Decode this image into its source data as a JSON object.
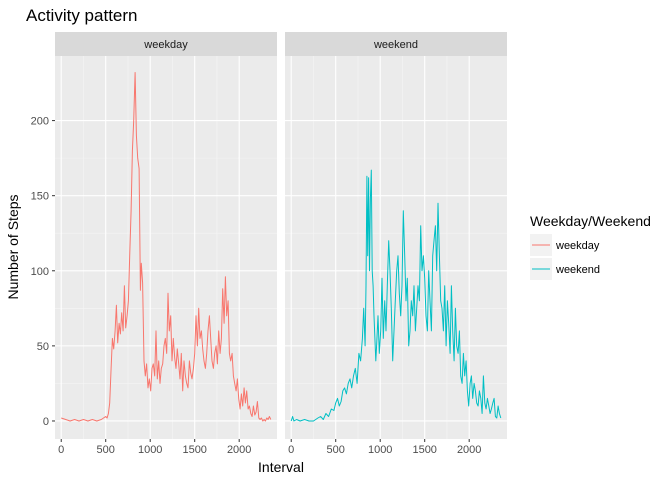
{
  "chart_data": {
    "type": "line",
    "title": "Activity pattern",
    "xlabel": "Interval",
    "ylabel": "Number of Steps",
    "facets": [
      "weekday",
      "weekend"
    ],
    "xlim": [
      -70,
      2425
    ],
    "ylim": [
      -12,
      243
    ],
    "x_ticks": [
      0,
      500,
      1000,
      1500,
      2000
    ],
    "y_ticks": [
      0,
      50,
      100,
      150,
      200
    ],
    "grid": true,
    "legend": {
      "title": "Weekday/Weekend",
      "position": "right",
      "entries": [
        "weekday",
        "weekend"
      ]
    },
    "colors": {
      "weekday": "#F8766D",
      "weekend": "#00BFC4",
      "panel": "#EBEBEB",
      "strip": "#D9D9D9"
    },
    "series": [
      {
        "name": "weekday",
        "facet": "weekday",
        "points": [
          [
            0,
            2
          ],
          [
            50,
            1
          ],
          [
            100,
            0
          ],
          [
            150,
            1
          ],
          [
            200,
            0
          ],
          [
            250,
            1
          ],
          [
            300,
            0
          ],
          [
            350,
            1
          ],
          [
            400,
            0
          ],
          [
            450,
            1
          ],
          [
            500,
            3
          ],
          [
            515,
            2
          ],
          [
            530,
            5
          ],
          [
            545,
            12
          ],
          [
            560,
            35
          ],
          [
            575,
            55
          ],
          [
            590,
            48
          ],
          [
            605,
            60
          ],
          [
            620,
            77
          ],
          [
            635,
            52
          ],
          [
            650,
            65
          ],
          [
            665,
            58
          ],
          [
            680,
            72
          ],
          [
            695,
            60
          ],
          [
            710,
            90
          ],
          [
            725,
            62
          ],
          [
            740,
            70
          ],
          [
            755,
            80
          ],
          [
            770,
            110
          ],
          [
            785,
            140
          ],
          [
            800,
            180
          ],
          [
            815,
            200
          ],
          [
            830,
            232
          ],
          [
            845,
            190
          ],
          [
            860,
            175
          ],
          [
            875,
            168
          ],
          [
            890,
            87
          ],
          [
            900,
            105
          ],
          [
            915,
            92
          ],
          [
            930,
            40
          ],
          [
            945,
            30
          ],
          [
            960,
            38
          ],
          [
            975,
            22
          ],
          [
            990,
            28
          ],
          [
            1005,
            20
          ],
          [
            1020,
            35
          ],
          [
            1035,
            38
          ],
          [
            1050,
            30
          ],
          [
            1065,
            60
          ],
          [
            1080,
            28
          ],
          [
            1095,
            40
          ],
          [
            1110,
            25
          ],
          [
            1125,
            35
          ],
          [
            1140,
            38
          ],
          [
            1155,
            50
          ],
          [
            1170,
            55
          ],
          [
            1185,
            45
          ],
          [
            1200,
            85
          ],
          [
            1215,
            60
          ],
          [
            1230,
            70
          ],
          [
            1245,
            40
          ],
          [
            1260,
            55
          ],
          [
            1275,
            42
          ],
          [
            1290,
            35
          ],
          [
            1305,
            48
          ],
          [
            1320,
            38
          ],
          [
            1335,
            28
          ],
          [
            1350,
            45
          ],
          [
            1365,
            20
          ],
          [
            1380,
            40
          ],
          [
            1395,
            30
          ],
          [
            1410,
            25
          ],
          [
            1425,
            22
          ],
          [
            1440,
            40
          ],
          [
            1455,
            32
          ],
          [
            1470,
            28
          ],
          [
            1485,
            35
          ],
          [
            1500,
            45
          ],
          [
            1515,
            70
          ],
          [
            1530,
            50
          ],
          [
            1545,
            75
          ],
          [
            1560,
            55
          ],
          [
            1575,
            60
          ],
          [
            1590,
            48
          ],
          [
            1605,
            40
          ],
          [
            1620,
            35
          ],
          [
            1635,
            45
          ],
          [
            1650,
            60
          ],
          [
            1665,
            70
          ],
          [
            1680,
            55
          ],
          [
            1695,
            40
          ],
          [
            1710,
            35
          ],
          [
            1725,
            45
          ],
          [
            1740,
            50
          ],
          [
            1755,
            38
          ],
          [
            1770,
            60
          ],
          [
            1785,
            45
          ],
          [
            1800,
            55
          ],
          [
            1815,
            88
          ],
          [
            1830,
            65
          ],
          [
            1845,
            96
          ],
          [
            1860,
            70
          ],
          [
            1875,
            80
          ],
          [
            1890,
            45
          ],
          [
            1905,
            40
          ],
          [
            1920,
            45
          ],
          [
            1935,
            30
          ],
          [
            1950,
            25
          ],
          [
            1965,
            20
          ],
          [
            1980,
            28
          ],
          [
            1995,
            15
          ],
          [
            2010,
            8
          ],
          [
            2025,
            18
          ],
          [
            2040,
            10
          ],
          [
            2055,
            22
          ],
          [
            2070,
            12
          ],
          [
            2085,
            20
          ],
          [
            2100,
            8
          ],
          [
            2115,
            10
          ],
          [
            2130,
            5
          ],
          [
            2145,
            3
          ],
          [
            2160,
            10
          ],
          [
            2175,
            4
          ],
          [
            2190,
            6
          ],
          [
            2205,
            13
          ],
          [
            2220,
            2
          ],
          [
            2235,
            1
          ],
          [
            2250,
            2
          ],
          [
            2265,
            0
          ],
          [
            2280,
            1
          ],
          [
            2295,
            0
          ],
          [
            2310,
            2
          ],
          [
            2325,
            1
          ],
          [
            2340,
            3
          ],
          [
            2355,
            1
          ]
        ]
      },
      {
        "name": "weekend",
        "facet": "weekend",
        "points": [
          [
            0,
            0
          ],
          [
            15,
            3
          ],
          [
            30,
            0
          ],
          [
            60,
            1
          ],
          [
            100,
            0
          ],
          [
            150,
            1
          ],
          [
            200,
            0
          ],
          [
            250,
            0
          ],
          [
            300,
            2
          ],
          [
            330,
            3
          ],
          [
            360,
            1
          ],
          [
            390,
            5
          ],
          [
            420,
            3
          ],
          [
            450,
            8
          ],
          [
            480,
            7
          ],
          [
            500,
            12
          ],
          [
            520,
            15
          ],
          [
            540,
            10
          ],
          [
            560,
            13
          ],
          [
            580,
            20
          ],
          [
            600,
            22
          ],
          [
            620,
            18
          ],
          [
            640,
            25
          ],
          [
            660,
            28
          ],
          [
            680,
            22
          ],
          [
            700,
            30
          ],
          [
            720,
            35
          ],
          [
            740,
            25
          ],
          [
            760,
            45
          ],
          [
            780,
            40
          ],
          [
            800,
            55
          ],
          [
            815,
            75
          ],
          [
            830,
            50
          ],
          [
            840,
            90
          ],
          [
            850,
            163
          ],
          [
            860,
            110
          ],
          [
            870,
            162
          ],
          [
            880,
            100
          ],
          [
            890,
            148
          ],
          [
            900,
            167
          ],
          [
            910,
            100
          ],
          [
            920,
            90
          ],
          [
            930,
            70
          ],
          [
            940,
            55
          ],
          [
            950,
            40
          ],
          [
            960,
            50
          ],
          [
            975,
            70
          ],
          [
            990,
            45
          ],
          [
            1005,
            60
          ],
          [
            1020,
            95
          ],
          [
            1035,
            55
          ],
          [
            1050,
            80
          ],
          [
            1065,
            60
          ],
          [
            1080,
            90
          ],
          [
            1095,
            120
          ],
          [
            1110,
            100
          ],
          [
            1125,
            75
          ],
          [
            1140,
            40
          ],
          [
            1155,
            60
          ],
          [
            1170,
            80
          ],
          [
            1185,
            100
          ],
          [
            1200,
            110
          ],
          [
            1215,
            85
          ],
          [
            1230,
            70
          ],
          [
            1245,
            90
          ],
          [
            1260,
            140
          ],
          [
            1275,
            110
          ],
          [
            1290,
            80
          ],
          [
            1305,
            95
          ],
          [
            1320,
            50
          ],
          [
            1335,
            60
          ],
          [
            1350,
            80
          ],
          [
            1365,
            70
          ],
          [
            1380,
            90
          ],
          [
            1395,
            60
          ],
          [
            1410,
            75
          ],
          [
            1425,
            90
          ],
          [
            1440,
            80
          ],
          [
            1455,
            130
          ],
          [
            1470,
            100
          ],
          [
            1485,
            110
          ],
          [
            1500,
            95
          ],
          [
            1515,
            70
          ],
          [
            1530,
            60
          ],
          [
            1545,
            100
          ],
          [
            1560,
            80
          ],
          [
            1575,
            60
          ],
          [
            1590,
            110
          ],
          [
            1605,
            120
          ],
          [
            1620,
            130
          ],
          [
            1635,
            100
          ],
          [
            1650,
            145
          ],
          [
            1665,
            110
          ],
          [
            1680,
            80
          ],
          [
            1695,
            75
          ],
          [
            1710,
            60
          ],
          [
            1725,
            90
          ],
          [
            1740,
            50
          ],
          [
            1755,
            80
          ],
          [
            1770,
            65
          ],
          [
            1785,
            45
          ],
          [
            1800,
            90
          ],
          [
            1815,
            60
          ],
          [
            1830,
            40
          ],
          [
            1845,
            75
          ],
          [
            1860,
            50
          ],
          [
            1875,
            45
          ],
          [
            1890,
            60
          ],
          [
            1905,
            30
          ],
          [
            1920,
            25
          ],
          [
            1935,
            45
          ],
          [
            1950,
            30
          ],
          [
            1965,
            40
          ],
          [
            1980,
            20
          ],
          [
            1995,
            10
          ],
          [
            2010,
            25
          ],
          [
            2025,
            30
          ],
          [
            2040,
            15
          ],
          [
            2055,
            25
          ],
          [
            2070,
            20
          ],
          [
            2085,
            12
          ],
          [
            2100,
            10
          ],
          [
            2115,
            20
          ],
          [
            2130,
            15
          ],
          [
            2145,
            5
          ],
          [
            2160,
            30
          ],
          [
            2175,
            12
          ],
          [
            2190,
            8
          ],
          [
            2205,
            15
          ],
          [
            2220,
            10
          ],
          [
            2235,
            5
          ],
          [
            2250,
            8
          ],
          [
            2265,
            12
          ],
          [
            2280,
            15
          ],
          [
            2295,
            3
          ],
          [
            2310,
            2
          ],
          [
            2325,
            10
          ],
          [
            2340,
            5
          ],
          [
            2355,
            2
          ]
        ]
      }
    ]
  }
}
